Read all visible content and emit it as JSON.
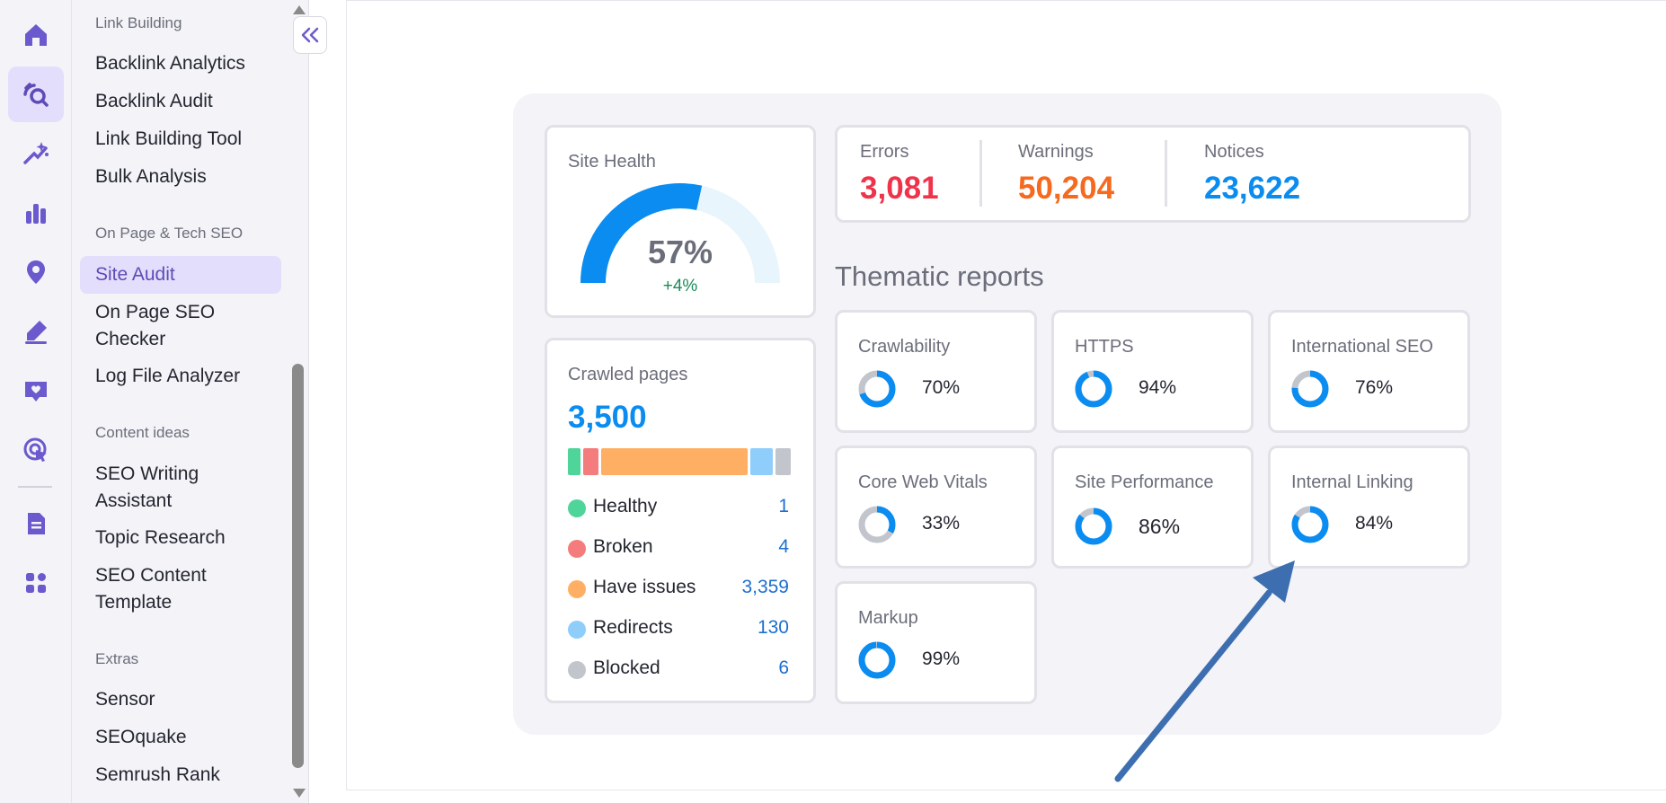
{
  "sidebar": {
    "sections": [
      {
        "title": "Link Building",
        "items": [
          "Backlink Analytics",
          "Backlink Audit",
          "Link Building Tool",
          "Bulk Analysis"
        ]
      },
      {
        "title": "On Page & Tech SEO",
        "items": [
          "Site Audit",
          "On Page SEO Checker",
          "Log File Analyzer"
        ]
      },
      {
        "title": "Content ideas",
        "items": [
          "SEO Writing Assistant",
          "Topic Research",
          "SEO Content Template"
        ]
      },
      {
        "title": "Extras",
        "items": [
          "Sensor",
          "SEOquake",
          "Semrush Rank"
        ]
      }
    ],
    "active_item": "Site Audit"
  },
  "rail_icons": [
    "home-icon",
    "seo-icon",
    "ai-sparkle-icon",
    "bar-chart-icon",
    "location-pin-icon",
    "edit-pen-icon",
    "social-heart-icon",
    "advertising-cursor-icon",
    "document-icon",
    "apps-grid-icon"
  ],
  "site_health": {
    "title": "Site Health",
    "value": "57%",
    "delta": "+4%",
    "fraction": 0.57
  },
  "issues": {
    "errors": {
      "label": "Errors",
      "value": "3,081",
      "color": "#f0334b"
    },
    "warnings": {
      "label": "Warnings",
      "value": "50,204",
      "color": "#f56a1f"
    },
    "notices": {
      "label": "Notices",
      "value": "23,622",
      "color": "#0a8cf0"
    }
  },
  "crawled": {
    "title": "Crawled pages",
    "value": "3,500",
    "breakdown": [
      {
        "label": "Healthy",
        "count": "1",
        "color": "#4fd49a"
      },
      {
        "label": "Broken",
        "count": "4",
        "color": "#f47c7c"
      },
      {
        "label": "Have issues",
        "count": "3,359",
        "color": "#ffaf63"
      },
      {
        "label": "Redirects",
        "count": "130",
        "color": "#8fcdfb"
      },
      {
        "label": "Blocked",
        "count": "6",
        "color": "#c3c5cd"
      }
    ]
  },
  "thematic": {
    "title": "Thematic reports",
    "reports": [
      {
        "label": "Crawlability",
        "value": "70%",
        "fraction": 0.7
      },
      {
        "label": "HTTPS",
        "value": "94%",
        "fraction": 0.94
      },
      {
        "label": "International SEO",
        "value": "76%",
        "fraction": 0.76
      },
      {
        "label": "Core Web Vitals",
        "value": "33%",
        "fraction": 0.33
      },
      {
        "label": "Site Performance",
        "value": "86%",
        "fraction": 0.86
      },
      {
        "label": "Internal Linking",
        "value": "84%",
        "fraction": 0.84
      },
      {
        "label": "Markup",
        "value": "99%",
        "fraction": 0.99
      }
    ]
  },
  "colors": {
    "accent": "#0a8cf0",
    "purple": "#6a5acd",
    "ring_bg": "#c3c5cd",
    "annotation_arrow": "#3d6fb0"
  }
}
